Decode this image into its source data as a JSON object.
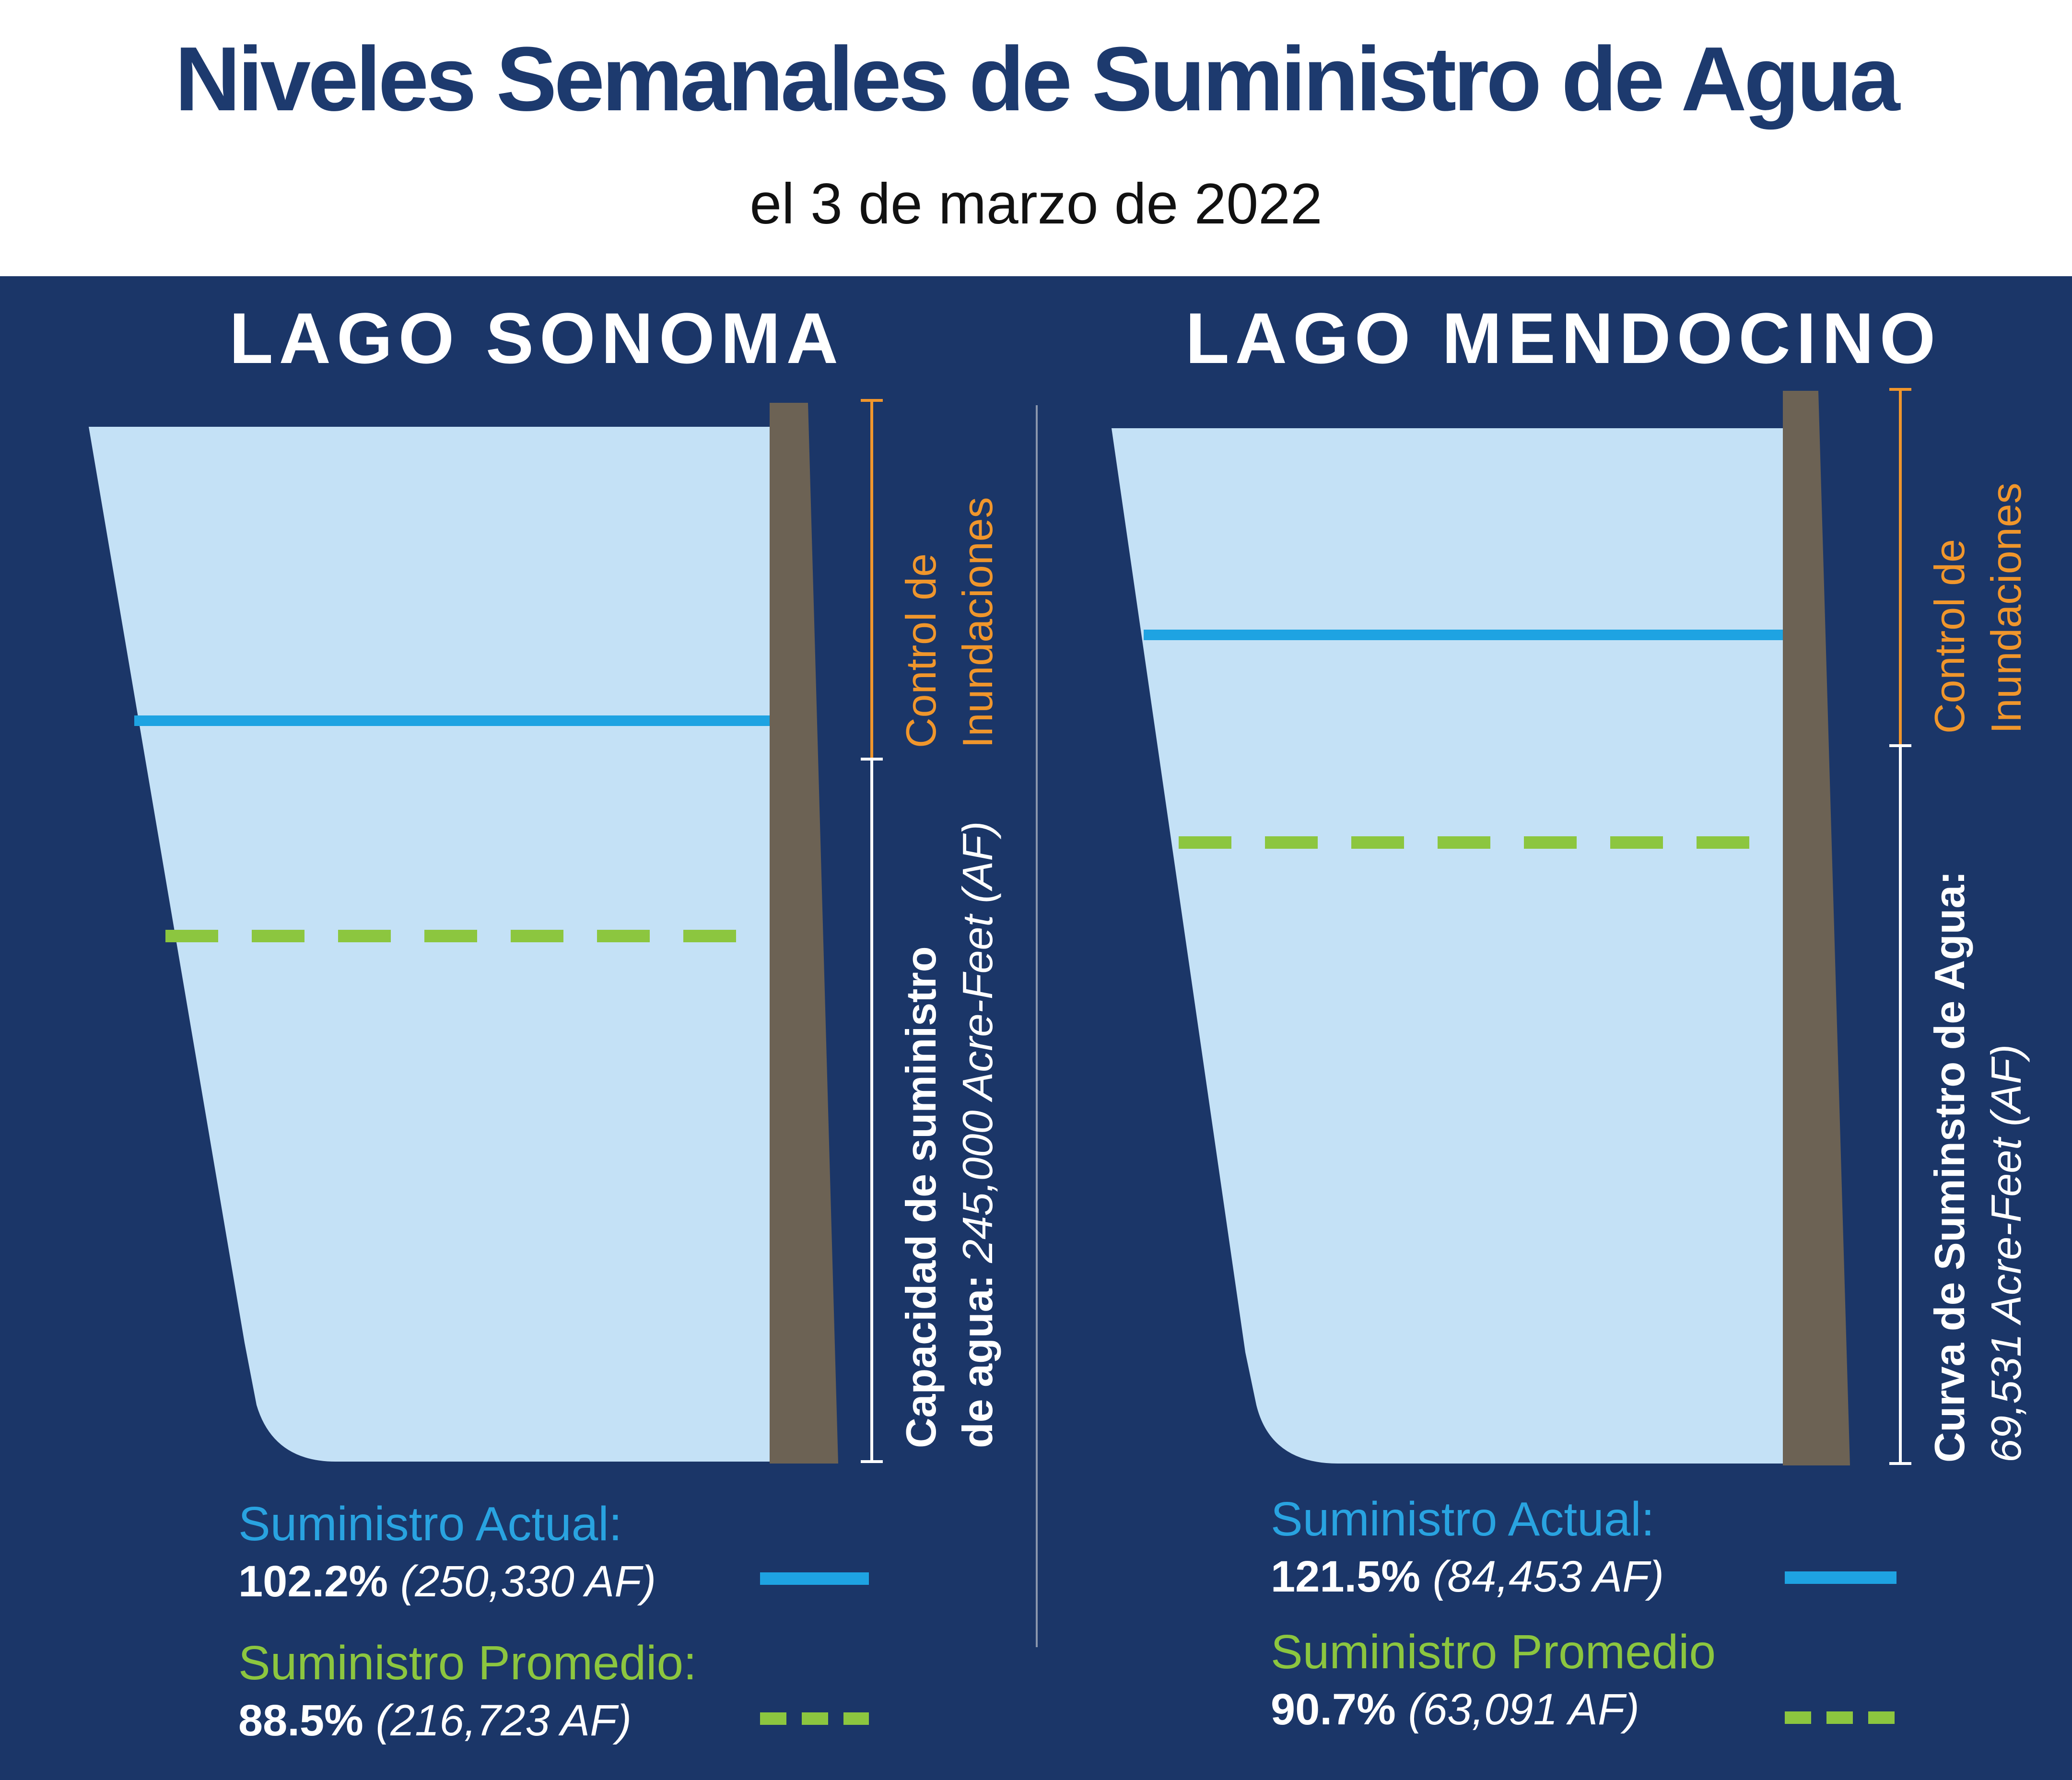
{
  "header": {
    "title": "Niveles Semanales de Suministro de Agua",
    "subtitle": "el 3 de marzo de 2022"
  },
  "colors": {
    "background": "#1b3668",
    "water": "#c4e1f6",
    "dam": "#6c6254",
    "current_line": "#1ea3e2",
    "average_line": "#8cc63f",
    "flood_bracket": "#f0962c",
    "supply_bracket": "#ffffff"
  },
  "chart_data": [
    {
      "type": "other",
      "lake": "LAGO SONOMA",
      "flood_label": [
        "Control de",
        "Inundaciones"
      ],
      "capacity_label_lines": [
        "Capacidad de suministro",
        "de agua:"
      ],
      "capacity_value": "245,000 Acre-Feet (AF)",
      "capacity_af": 245000,
      "current": {
        "label": "Suministro Actual:",
        "percent_text": "102.2%",
        "af_text": "(250,330 AF)",
        "percent": 102.2,
        "af": 250330
      },
      "average": {
        "label": "Suministro Promedio:",
        "percent_text": "88.5%",
        "af_text": "(216,723 AF)",
        "percent": 88.5,
        "af": 216723
      }
    },
    {
      "type": "other",
      "lake": "LAGO MENDOCINO",
      "flood_label": [
        "Control de",
        "Inundaciones"
      ],
      "capacity_label_lines": [
        "Curva de Suminstro de Agua:",
        ""
      ],
      "capacity_value": "69,531  Acre-Feet (AF)",
      "capacity_af": 69531,
      "current": {
        "label": "Suministro Actual:",
        "percent_text": "121.5%",
        "af_text": "(84,453 AF)",
        "percent": 121.5,
        "af": 84453
      },
      "average": {
        "label": "Suministro Promedio",
        "percent_text": "90.7%",
        "af_text": "(63,091 AF)",
        "percent": 90.7,
        "af": 63091
      }
    }
  ]
}
